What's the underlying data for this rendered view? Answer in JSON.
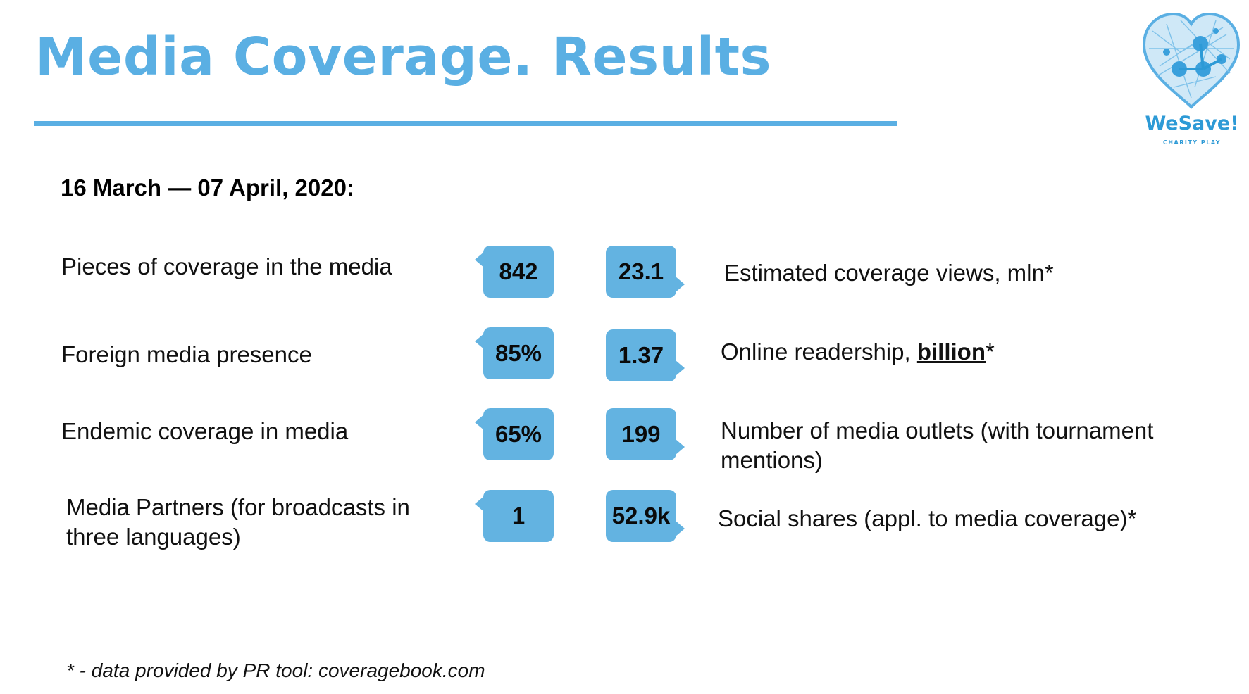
{
  "slide": {
    "title": "Media Coverage. Results",
    "period": "16 March — 07 April, 2020:",
    "footnote": "* - data provided by PR tool: coveragebook.com"
  },
  "logo": {
    "name": "WeSave!",
    "tagline": "CHARITY PLAY",
    "icon": "heart-network-icon"
  },
  "metrics_left": [
    {
      "label": "Pieces of coverage in the media",
      "value": "842"
    },
    {
      "label": "Foreign media presence",
      "value": "85%"
    },
    {
      "label": "Endemic coverage in media",
      "value": "65%"
    },
    {
      "label": "Media Partners (for broadcasts in three languages)",
      "value": "1"
    }
  ],
  "metrics_right": [
    {
      "value": "23.1",
      "label": "Estimated coverage views, mln*"
    },
    {
      "value": "1.37",
      "label_pre": "Online readership, ",
      "label_emph": "billion",
      "label_post": "*"
    },
    {
      "value": "199",
      "label": "Number of media outlets (with tournament mentions)"
    },
    {
      "value": "52.9k",
      "label": "Social shares (appl. to media coverage)*"
    }
  ],
  "colors": {
    "accent": "#5aafe3",
    "badge": "#63b3e1",
    "logo": "#2d9ad6",
    "text": "#111111"
  }
}
